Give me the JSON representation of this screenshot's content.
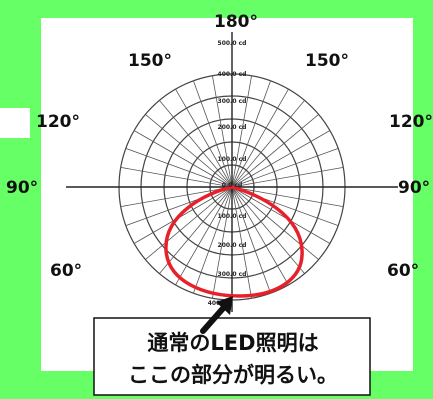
{
  "angle_labels": {
    "top": "180°",
    "upper_left": "150°",
    "upper_right": "150°",
    "mid_left": "120°",
    "mid_right": "120°",
    "left": "90°",
    "right": "90°",
    "lower_left": "60°",
    "lower_right": "60°"
  },
  "intensity_labels": {
    "top": [
      "500.0 cd",
      "400.0 cd",
      "300.0 cd",
      "200.0 cd",
      "100.0 cd",
      "0.0 cd"
    ],
    "bottom": [
      "100.0 cd",
      "200.0 cd",
      "300.0 cd",
      "400"
    ]
  },
  "callout": {
    "line1": "通常のLED照明は",
    "line2": "ここの部分が明るい。"
  },
  "colors": {
    "background": "#66ff66",
    "panel": "#ffffff",
    "grid": "#444444",
    "curve": "#e8202a",
    "arrow": "#111111"
  }
}
